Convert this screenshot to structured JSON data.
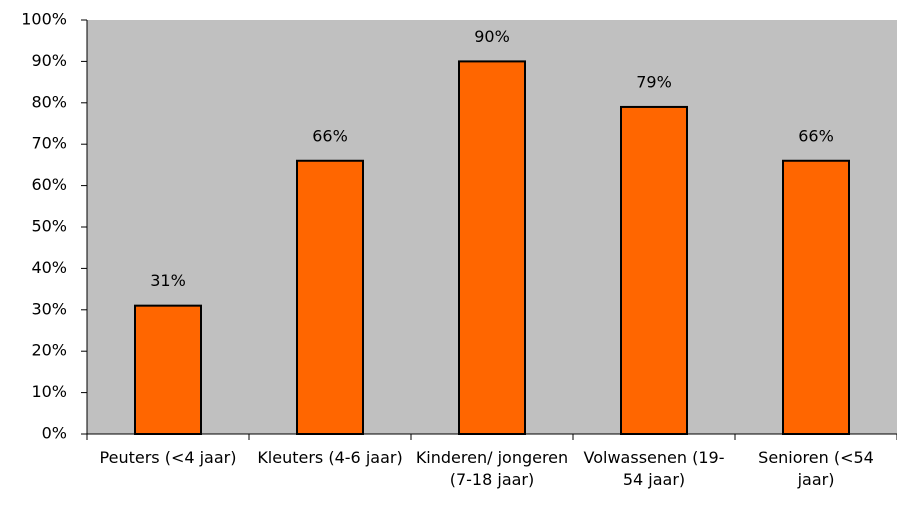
{
  "chart_data": {
    "type": "bar",
    "categories": [
      "Peuters (<4 jaar)",
      "Kleuters (4-6 jaar)",
      "Kinderen/ jongeren (7-18 jaar)",
      "Volwassenen (19-54 jaar)",
      "Senioren (<54 jaar)"
    ],
    "values": [
      31,
      66,
      90,
      79,
      66
    ],
    "value_labels": [
      "31%",
      "66%",
      "90%",
      "79%",
      "66%"
    ],
    "color": "#ff6600",
    "ylim": [
      0,
      100
    ],
    "yticks": [
      {
        "value": 0,
        "label": "0%"
      },
      {
        "value": 10,
        "label": "10%"
      },
      {
        "value": 20,
        "label": "20%"
      },
      {
        "value": 30,
        "label": "30%"
      },
      {
        "value": 40,
        "label": "40%"
      },
      {
        "value": 50,
        "label": "50%"
      },
      {
        "value": 60,
        "label": "60%"
      },
      {
        "value": 70,
        "label": "70%"
      },
      {
        "value": 80,
        "label": "80%"
      },
      {
        "value": 90,
        "label": "90%"
      },
      {
        "value": 100,
        "label": "100%"
      }
    ],
    "grid": false
  }
}
